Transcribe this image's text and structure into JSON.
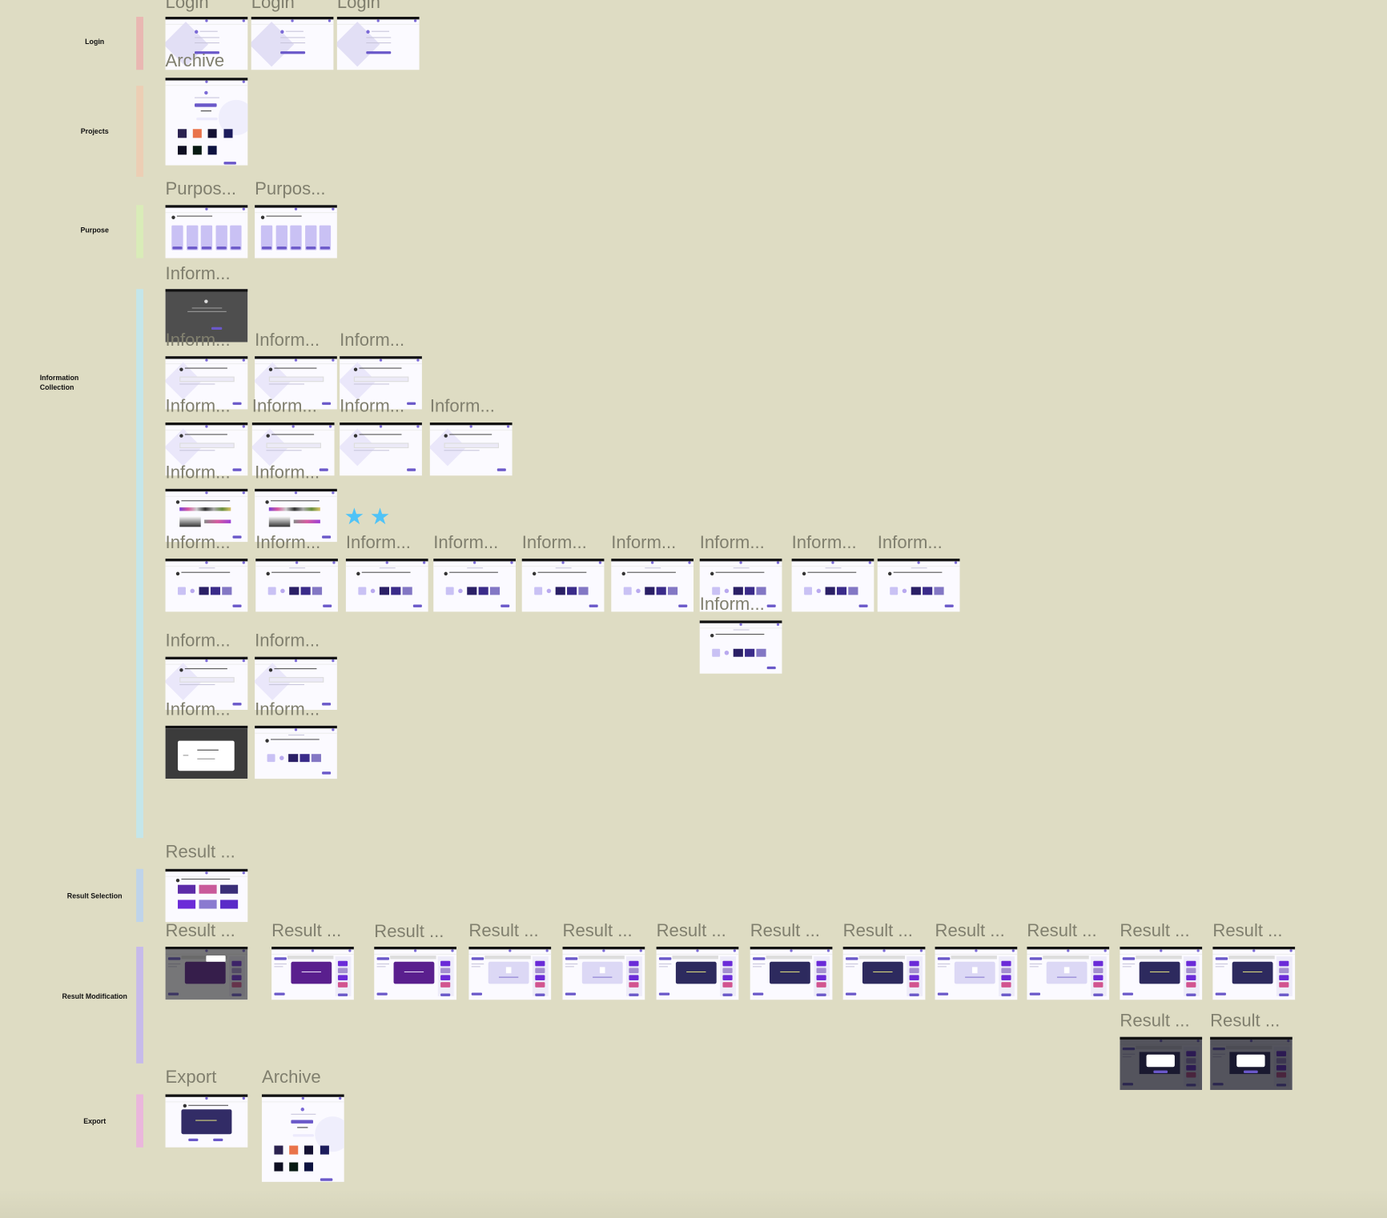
{
  "colors": {
    "canvas_background": "#dedcc3",
    "frame_label": "#807f6e",
    "accent_purple": "#6a58c9",
    "annotation_star": "#4fc3f7"
  },
  "sections": [
    {
      "label": "Login",
      "color": "#e9b7b2"
    },
    {
      "label": "Projects",
      "color": "#ecceb4"
    },
    {
      "label": "Purpose",
      "color": "#d9ecb8"
    },
    {
      "label": "Information Collection",
      "color": "#c4e6ea"
    },
    {
      "label": "Result Selection",
      "color": "#bfd4ea"
    },
    {
      "label": "Result Modification",
      "color": "#c7baea"
    },
    {
      "label": "Export",
      "color": "#eab6dc"
    }
  ],
  "annotations": {
    "stars": [
      "star-icon",
      "star-icon"
    ],
    "star_glyph": "★"
  },
  "frames": [
    {
      "label": "Login",
      "variant": "login"
    },
    {
      "label": "Login",
      "variant": "login"
    },
    {
      "label": "Login",
      "variant": "login"
    },
    {
      "label": "Archive",
      "variant": "projects"
    },
    {
      "label": "Purpos...",
      "variant": "purpose"
    },
    {
      "label": "Purpos...",
      "variant": "purpose"
    },
    {
      "label": "Inform...",
      "variant": "dark-modal"
    },
    {
      "label": "Inform...",
      "variant": "form"
    },
    {
      "label": "Inform...",
      "variant": "form"
    },
    {
      "label": "Inform...",
      "variant": "form"
    },
    {
      "label": "Inform...",
      "variant": "form"
    },
    {
      "label": "Inform...",
      "variant": "form"
    },
    {
      "label": "Inform...",
      "variant": "form"
    },
    {
      "label": "Inform...",
      "variant": "form"
    },
    {
      "label": "Inform...",
      "variant": "colors"
    },
    {
      "label": "Inform...",
      "variant": "colors"
    },
    {
      "label": "Inform...",
      "variant": "style"
    },
    {
      "label": "Inform...",
      "variant": "style"
    },
    {
      "label": "Inform...",
      "variant": "style"
    },
    {
      "label": "Inform...",
      "variant": "style"
    },
    {
      "label": "Inform...",
      "variant": "style"
    },
    {
      "label": "Inform...",
      "variant": "style"
    },
    {
      "label": "Inform...",
      "variant": "style"
    },
    {
      "label": "Inform...",
      "variant": "style"
    },
    {
      "label": "Inform...",
      "variant": "style"
    },
    {
      "label": "Inform...",
      "variant": "style"
    },
    {
      "label": "Inform...",
      "variant": "form"
    },
    {
      "label": "Inform...",
      "variant": "form"
    },
    {
      "label": "Inform...",
      "variant": "upload"
    },
    {
      "label": "Inform...",
      "variant": "style"
    },
    {
      "label": "Result ...",
      "variant": "result-select"
    },
    {
      "label": "Result ...",
      "variant": "mod-dim"
    },
    {
      "label": "Result ...",
      "variant": "mod-purple"
    },
    {
      "label": "Result ...",
      "variant": "mod-purple"
    },
    {
      "label": "Result ...",
      "variant": "mod-loading"
    },
    {
      "label": "Result ...",
      "variant": "mod-loading"
    },
    {
      "label": "Result ...",
      "variant": "mod-navy"
    },
    {
      "label": "Result ...",
      "variant": "mod-navy"
    },
    {
      "label": "Result ...",
      "variant": "mod-navy"
    },
    {
      "label": "Result ...",
      "variant": "mod-loading"
    },
    {
      "label": "Result ...",
      "variant": "mod-loading"
    },
    {
      "label": "Result ...",
      "variant": "mod-navy"
    },
    {
      "label": "Result ...",
      "variant": "mod-navy"
    },
    {
      "label": "Result ...",
      "variant": "mod-modal"
    },
    {
      "label": "Result ...",
      "variant": "mod-modal"
    },
    {
      "label": "Export",
      "variant": "export"
    },
    {
      "label": "Archive",
      "variant": "projects"
    }
  ]
}
